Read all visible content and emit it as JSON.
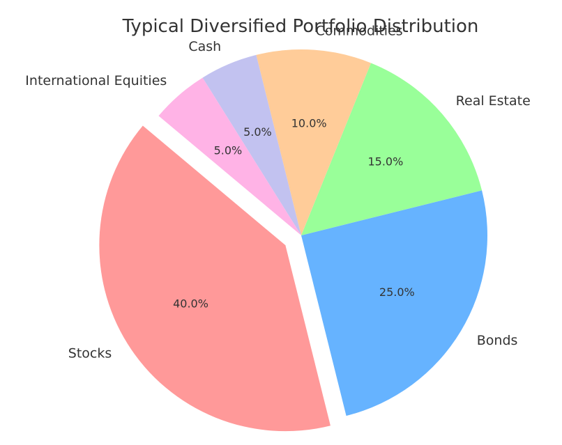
{
  "chart_data": {
    "type": "pie",
    "title": "Typical Diversified Portfolio Distribution",
    "start_angle_deg": 140,
    "direction": "counterclockwise",
    "slices": [
      {
        "label": "Stocks",
        "value": 40,
        "pct_label": "40.0%",
        "color": "#ff9999",
        "explode": 0.1
      },
      {
        "label": "Bonds",
        "value": 25,
        "pct_label": "25.0%",
        "color": "#66b3ff",
        "explode": 0
      },
      {
        "label": "Real Estate",
        "value": 15,
        "pct_label": "15.0%",
        "color": "#99ff99",
        "explode": 0
      },
      {
        "label": "Commodities",
        "value": 10,
        "pct_label": "10.0%",
        "color": "#ffcc99",
        "explode": 0
      },
      {
        "label": "Cash",
        "value": 5,
        "pct_label": "5.0%",
        "color": "#c2c2f0",
        "explode": 0
      },
      {
        "label": "International Equities",
        "value": 5,
        "pct_label": "5.0%",
        "color": "#ffb3e6",
        "explode": 0
      }
    ]
  }
}
